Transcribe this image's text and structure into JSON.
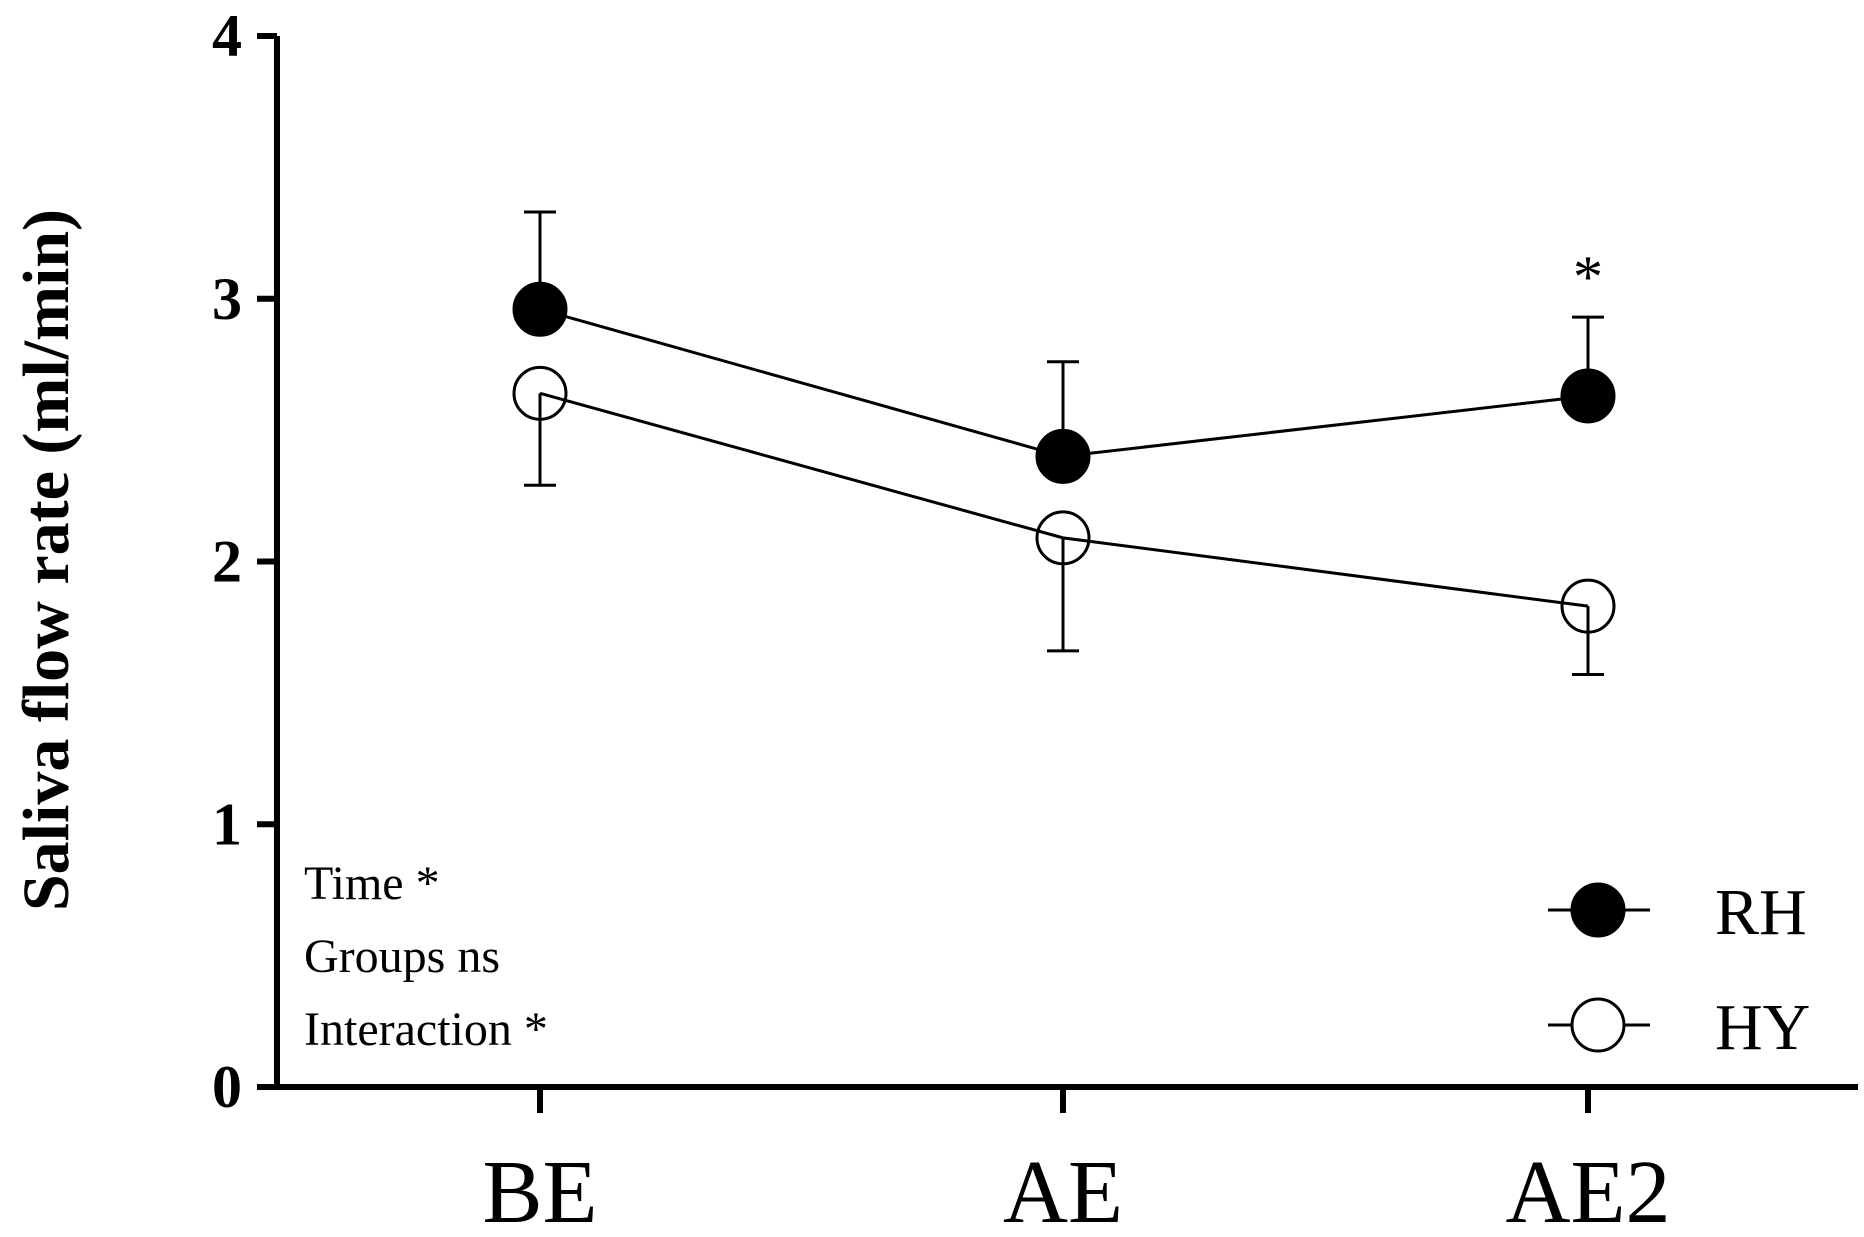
{
  "chart_data": {
    "type": "line",
    "title": "",
    "xlabel": "",
    "ylabel": "Saliva flow rate (ml/min)",
    "categories": [
      "BE",
      "AE",
      "AE2"
    ],
    "ylim": [
      0,
      4
    ],
    "yticks": [
      "0",
      "1",
      "2",
      "3",
      "4"
    ],
    "series": [
      {
        "name": "RH",
        "marker": "filled-circle",
        "values": [
          2.96,
          2.4,
          2.63
        ],
        "error_upper": [
          3.33,
          2.76,
          2.93
        ],
        "error_lower": [
          null,
          null,
          null
        ]
      },
      {
        "name": "HY",
        "marker": "open-circle",
        "values": [
          2.64,
          2.09,
          1.83
        ],
        "error_upper": [
          null,
          null,
          null
        ],
        "error_lower": [
          2.29,
          1.66,
          1.57
        ]
      }
    ],
    "significance_markers": [
      {
        "category": "AE2",
        "text": "*"
      }
    ],
    "annotations": [
      "Time *",
      "Groups ns",
      "Interaction *"
    ],
    "legend_position": "bottom-right",
    "grid": false,
    "colors": {
      "line": "#000000",
      "background": "#ffffff"
    }
  }
}
